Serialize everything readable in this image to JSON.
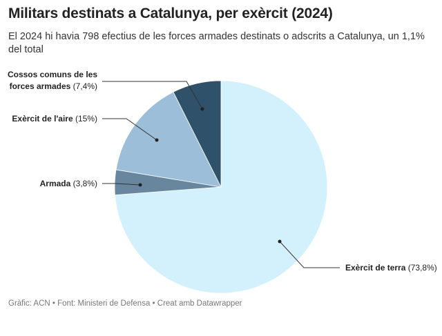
{
  "title": "Militars destinats a Catalunya, per exèrcit (2024)",
  "subtitle": "El 2024 hi havia 798 efectius de les forces armades destinats o adscrits a Catalunya, un 1,1% del total",
  "footer": "Gràfic: ACN • Font: Ministeri de Defensa • Creat amb Datawrapper",
  "chart_data": {
    "type": "pie",
    "title": "Militars destinats a Catalunya, per exèrcit (2024)",
    "unit": "%",
    "slices": [
      {
        "label": "Exèrcit de terra",
        "value": 73.8,
        "display": "(73,8%)",
        "color": "#d3f1fd"
      },
      {
        "label": "Armada",
        "value": 3.8,
        "display": "(3,8%)",
        "color": "#68879f"
      },
      {
        "label": "Exèrcit de l'aire",
        "value": 15,
        "display": "(15%)",
        "color": "#9dbed8"
      },
      {
        "label": "Cossos comuns de les forces armades",
        "label_lines": [
          "Cossos comuns de les",
          "forces armades"
        ],
        "value": 7.4,
        "display": "(7,4%)",
        "color": "#2f5169"
      }
    ]
  }
}
